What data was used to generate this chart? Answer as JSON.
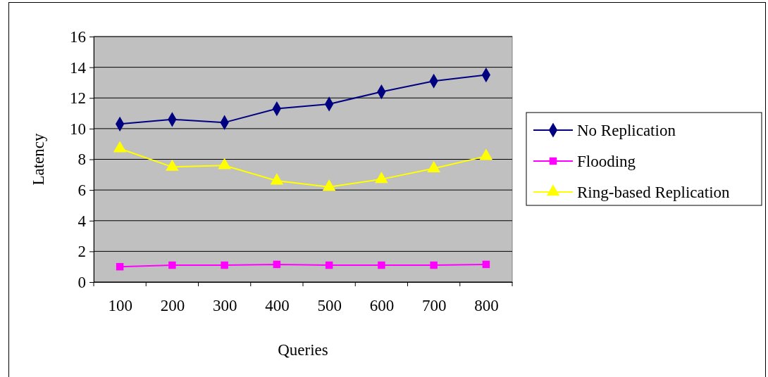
{
  "chart_data": {
    "type": "line",
    "xlabel": "Queries",
    "ylabel": "Latency",
    "categories": [
      "100",
      "200",
      "300",
      "400",
      "500",
      "600",
      "700",
      "800"
    ],
    "ylim": [
      0,
      16
    ],
    "yticks": [
      0,
      2,
      4,
      6,
      8,
      10,
      12,
      14,
      16
    ],
    "grid": "y",
    "legend": "right",
    "series": [
      {
        "name": "No Replication",
        "color": "#000080",
        "marker": "diamond",
        "values": [
          10.3,
          10.6,
          10.4,
          11.3,
          11.6,
          12.4,
          13.1,
          13.5
        ]
      },
      {
        "name": "Flooding",
        "color": "#ff00ff",
        "marker": "square",
        "values": [
          1.0,
          1.1,
          1.1,
          1.15,
          1.1,
          1.1,
          1.1,
          1.15
        ]
      },
      {
        "name": "Ring-based Replication",
        "color": "#ffff00",
        "marker": "triangle",
        "values": [
          8.7,
          7.5,
          7.6,
          6.6,
          6.2,
          6.7,
          7.4,
          8.2
        ]
      }
    ]
  }
}
